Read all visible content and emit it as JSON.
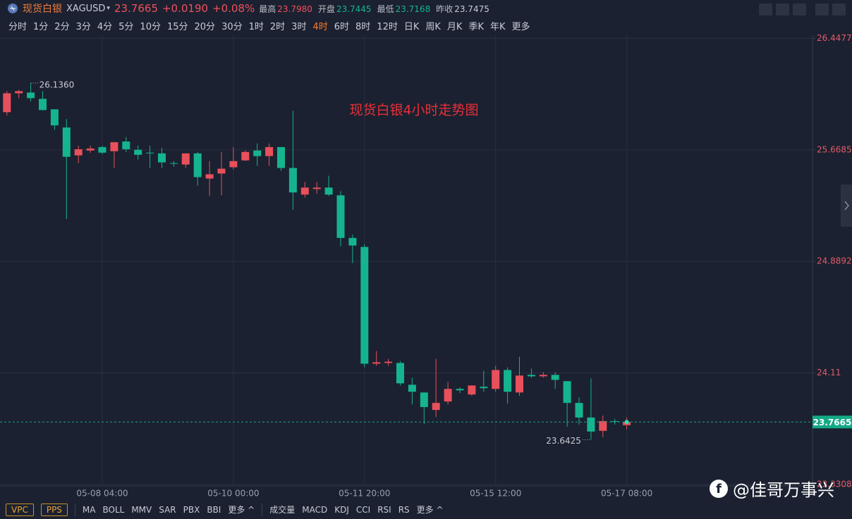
{
  "header": {
    "name": "现货白银",
    "symbol": "XAGUSD",
    "change": "+0.0190",
    "change_pct": "+0.08%",
    "stats": [
      {
        "label": "最高",
        "value": "23.7980"
      },
      {
        "label": "开盘",
        "value": "23.7445"
      },
      {
        "label": "最低",
        "value": "23.7168"
      },
      {
        "label": "昨收",
        "value": "23.7475"
      }
    ]
  },
  "timeframes": [
    "分时",
    "1分",
    "2分",
    "3分",
    "4分",
    "5分",
    "10分",
    "15分",
    "20分",
    "30分",
    "1时",
    "2时",
    "3时",
    "4时",
    "6时",
    "8时",
    "12时",
    "日K",
    "周K",
    "月K",
    "季K",
    "年K",
    "更多"
  ],
  "active_timeframe": 13,
  "bottom": {
    "buttons": [
      "VPC",
      "PPS"
    ],
    "main_indicators": [
      "MA",
      "BOLL",
      "MMV",
      "SAR",
      "PBX",
      "BBI",
      "更多 ^"
    ],
    "sub_indicators": [
      "成交量",
      "MACD",
      "KDJ",
      "CCI",
      "RSI",
      "RS",
      "更多 ^"
    ]
  },
  "watermark": "@佳哥万事兴",
  "chart_data": {
    "type": "candlestick",
    "title": "现货白银4小时走势图",
    "categories": [
      null,
      null,
      null,
      null,
      null,
      null,
      null,
      null,
      "05-08 04:00",
      null,
      null,
      null,
      null,
      null,
      null,
      null,
      null,
      null,
      null,
      "05-10 00:00",
      null,
      null,
      null,
      null,
      null,
      null,
      null,
      null,
      null,
      null,
      "05-11 20:00",
      null,
      null,
      null,
      null,
      null,
      null,
      null,
      null,
      null,
      null,
      "05-15 12:00",
      null,
      null,
      null,
      null,
      null,
      null,
      null,
      null,
      null,
      null,
      "05-17 08:00"
    ],
    "open": [
      25.932,
      26.064,
      26.069,
      26.025,
      25.952,
      25.825,
      25.63,
      25.664,
      25.688,
      25.659,
      25.727,
      25.669,
      25.649,
      25.644,
      25.576,
      25.566,
      25.644,
      25.468,
      25.503,
      25.547,
      25.595,
      25.664,
      25.625,
      25.688,
      25.542,
      25.356,
      25.395,
      25.405,
      25.351,
      25.053,
      24.99,
      24.174,
      24.179,
      24.179,
      24.027,
      23.973,
      23.851,
      23.91,
      23.998,
      23.959,
      24.013,
      23.998,
      24.13,
      23.973,
      24.096,
      24.086,
      24.096,
      24.052,
      23.9,
      23.798,
      23.705,
      23.773,
      23.7445
    ],
    "high": [
      26.079,
      26.089,
      26.136,
      26.079,
      25.952,
      25.884,
      25.698,
      25.698,
      25.698,
      25.722,
      25.757,
      25.698,
      25.698,
      25.683,
      25.59,
      25.644,
      25.654,
      25.59,
      25.654,
      25.688,
      25.664,
      25.713,
      25.713,
      25.688,
      25.942,
      25.444,
      25.444,
      25.488,
      25.38,
      25.077,
      25.009,
      24.262,
      24.208,
      24.193,
      24.076,
      23.973,
      24.208,
      24.047,
      24.008,
      24.022,
      24.125,
      24.159,
      24.149,
      24.223,
      24.14,
      24.115,
      24.115,
      24.052,
      23.939,
      24.071,
      23.812,
      23.787,
      23.798
    ],
    "low": [
      25.908,
      26.03,
      26.006,
      25.942,
      25.81,
      25.185,
      25.576,
      25.649,
      25.639,
      25.542,
      25.654,
      25.6,
      25.542,
      25.542,
      25.551,
      25.542,
      25.419,
      25.346,
      25.351,
      25.532,
      25.59,
      25.556,
      25.556,
      25.522,
      25.249,
      25.336,
      25.361,
      25.346,
      24.994,
      24.877,
      24.149,
      24.159,
      24.159,
      24.022,
      23.89,
      23.754,
      23.802,
      23.89,
      23.969,
      23.949,
      23.978,
      23.978,
      23.895,
      23.949,
      24.076,
      24.076,
      23.998,
      23.734,
      23.749,
      23.6425,
      23.661,
      23.749,
      23.7168
    ],
    "close": [
      26.064,
      26.079,
      26.03,
      25.947,
      25.84,
      25.62,
      25.673,
      25.678,
      25.649,
      25.722,
      25.673,
      25.634,
      25.644,
      25.581,
      25.571,
      25.644,
      25.478,
      25.498,
      25.537,
      25.59,
      25.654,
      25.625,
      25.688,
      25.542,
      25.371,
      25.405,
      25.405,
      25.356,
      25.053,
      25.0,
      24.174,
      24.184,
      24.188,
      24.037,
      23.978,
      23.871,
      23.9,
      23.998,
      23.988,
      24.022,
      24.003,
      24.13,
      23.978,
      24.091,
      24.086,
      24.096,
      24.061,
      23.9,
      23.798,
      23.7,
      23.773,
      23.768,
      23.7665
    ],
    "annotations": [
      "26.1360",
      "23.6425"
    ],
    "up_color": "#e8505b",
    "down_color": "#15b48f",
    "ylim": [
      23.32,
      26.46
    ],
    "yticks": [
      26.4477,
      25.6685,
      24.8892,
      24.11,
      23.3308
    ],
    "grid": true
  }
}
